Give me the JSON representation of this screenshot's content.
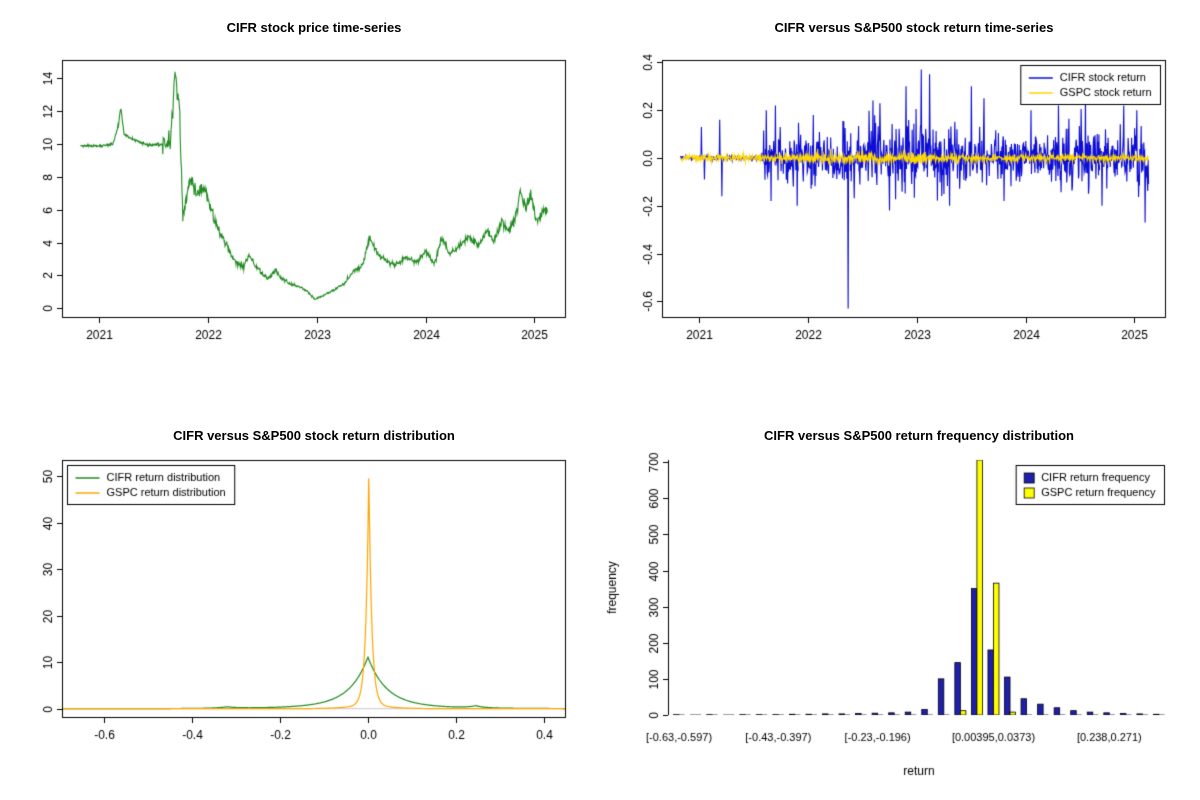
{
  "page": {
    "background": "#ffffff"
  },
  "chart_data": [
    {
      "id": "cifr-price-ts",
      "type": "line",
      "frame": "box",
      "title": "CIFR stock price time-series",
      "xlabel": "",
      "ylabel": "",
      "xlim": [
        2020.66,
        2025.29
      ],
      "ylim": [
        -0.58,
        15.08
      ],
      "xticks": [
        {
          "v": 2021,
          "label": "2021"
        },
        {
          "v": 2022,
          "label": "2022"
        },
        {
          "v": 2023,
          "label": "2023"
        },
        {
          "v": 2024,
          "label": "2024"
        },
        {
          "v": 2025,
          "label": "2025"
        }
      ],
      "yticks": [
        {
          "v": 0,
          "label": "0"
        },
        {
          "v": 2,
          "label": "2"
        },
        {
          "v": 4,
          "label": "4"
        },
        {
          "v": 6,
          "label": "6"
        },
        {
          "v": 8,
          "label": "8"
        },
        {
          "v": 10,
          "label": "10"
        },
        {
          "v": 12,
          "label": "12"
        },
        {
          "v": 14,
          "label": "14"
        }
      ],
      "series": [
        {
          "name": "CIFR price",
          "color": "#228b22",
          "seed": 11,
          "dt": 0.004,
          "trange": [
            2020.83,
            2025.12
          ],
          "noise_segments": [
            {
              "from": 2020.8,
              "to": 2021.58,
              "pct": 0.004
            },
            {
              "from": 2021.58,
              "to": 2025.2,
              "pct": 0.028
            }
          ],
          "keypoints": [
            [
              2020.83,
              9.9
            ],
            [
              2021.0,
              9.85
            ],
            [
              2021.13,
              10.0
            ],
            [
              2021.18,
              11.2
            ],
            [
              2021.2,
              12.2
            ],
            [
              2021.23,
              10.6
            ],
            [
              2021.3,
              10.3
            ],
            [
              2021.45,
              9.9
            ],
            [
              2021.55,
              9.95
            ],
            [
              2021.62,
              10.0
            ],
            [
              2021.66,
              10.6
            ],
            [
              2021.7,
              14.5
            ],
            [
              2021.72,
              13.0
            ],
            [
              2021.74,
              11.8
            ],
            [
              2021.77,
              5.6
            ],
            [
              2021.8,
              6.5
            ],
            [
              2021.83,
              7.9
            ],
            [
              2021.9,
              7.0
            ],
            [
              2021.97,
              7.3
            ],
            [
              2022.05,
              5.5
            ],
            [
              2022.15,
              4.1
            ],
            [
              2022.25,
              2.8
            ],
            [
              2022.33,
              2.5
            ],
            [
              2022.38,
              3.3
            ],
            [
              2022.43,
              2.7
            ],
            [
              2022.5,
              2.1
            ],
            [
              2022.55,
              1.8
            ],
            [
              2022.62,
              2.3
            ],
            [
              2022.68,
              1.8
            ],
            [
              2022.75,
              1.5
            ],
            [
              2022.85,
              1.3
            ],
            [
              2022.92,
              1.0
            ],
            [
              2022.98,
              0.55
            ],
            [
              2023.05,
              0.75
            ],
            [
              2023.15,
              1.1
            ],
            [
              2023.25,
              1.5
            ],
            [
              2023.33,
              2.2
            ],
            [
              2023.42,
              2.6
            ],
            [
              2023.49,
              4.4
            ],
            [
              2023.53,
              3.6
            ],
            [
              2023.58,
              3.2
            ],
            [
              2023.65,
              2.9
            ],
            [
              2023.72,
              2.6
            ],
            [
              2023.82,
              3.1
            ],
            [
              2023.92,
              2.8
            ],
            [
              2024.0,
              3.4
            ],
            [
              2024.08,
              2.7
            ],
            [
              2024.15,
              4.3
            ],
            [
              2024.22,
              3.3
            ],
            [
              2024.3,
              3.7
            ],
            [
              2024.4,
              4.4
            ],
            [
              2024.48,
              3.8
            ],
            [
              2024.56,
              4.7
            ],
            [
              2024.63,
              4.1
            ],
            [
              2024.7,
              5.3
            ],
            [
              2024.76,
              4.7
            ],
            [
              2024.82,
              5.5
            ],
            [
              2024.87,
              6.9
            ],
            [
              2024.92,
              6.2
            ],
            [
              2024.97,
              6.7
            ],
            [
              2025.02,
              5.3
            ],
            [
              2025.07,
              5.9
            ],
            [
              2025.12,
              6.1
            ]
          ]
        }
      ]
    },
    {
      "id": "cifr-gspc-return-ts",
      "type": "line",
      "frame": "box",
      "title": "CIFR versus S&P500 stock return time-series",
      "xlabel": "",
      "ylabel": "",
      "xlim": [
        2020.66,
        2025.29
      ],
      "ylim": [
        -0.67,
        0.41
      ],
      "xticks": [
        {
          "v": 2021,
          "label": "2021"
        },
        {
          "v": 2022,
          "label": "2022"
        },
        {
          "v": 2023,
          "label": "2023"
        },
        {
          "v": 2024,
          "label": "2024"
        },
        {
          "v": 2025,
          "label": "2025"
        }
      ],
      "yticks": [
        {
          "v": -0.6,
          "label": "-0.6"
        },
        {
          "v": -0.4,
          "label": "-0.4"
        },
        {
          "v": -0.2,
          "label": "-0.2"
        },
        {
          "v": 0.0,
          "label": "0.0"
        },
        {
          "v": 0.2,
          "label": "0.2"
        },
        {
          "v": 0.4,
          "label": "0.4"
        }
      ],
      "legend": {
        "pos": "tr",
        "style": "line",
        "items": [
          {
            "label": "CIFR stock return",
            "color": "#0d0dd6"
          },
          {
            "label": "GSPC stock return",
            "color": "#ffd700"
          }
        ]
      },
      "series": [
        {
          "name": "CIFR stock return",
          "color": "#0d0dd6",
          "seed": 23,
          "dt": 0.004,
          "trange": [
            2020.83,
            2025.13
          ],
          "vol_segments": [
            {
              "from": 2020.83,
              "to": 2021.57,
              "vol": 0.004
            },
            {
              "from": 2021.57,
              "to": 2022.3,
              "vol": 0.05
            },
            {
              "from": 2022.3,
              "to": 2023.35,
              "vol": 0.07
            },
            {
              "from": 2023.35,
              "to": 2024.25,
              "vol": 0.05
            },
            {
              "from": 2024.25,
              "to": 2025.14,
              "vol": 0.06
            }
          ],
          "spikes": [
            [
              2021.02,
              0.13
            ],
            [
              2021.05,
              -0.09
            ],
            [
              2021.19,
              0.16
            ],
            [
              2021.21,
              -0.16
            ],
            [
              2021.62,
              0.2
            ],
            [
              2021.66,
              -0.18
            ],
            [
              2021.7,
              0.22
            ],
            [
              2021.9,
              -0.2
            ],
            [
              2022.05,
              0.18
            ],
            [
              2022.37,
              -0.63
            ],
            [
              2022.6,
              0.24
            ],
            [
              2022.75,
              -0.22
            ],
            [
              2022.9,
              0.3
            ],
            [
              2023.04,
              0.37
            ],
            [
              2023.12,
              0.35
            ],
            [
              2023.3,
              -0.2
            ],
            [
              2023.5,
              0.3
            ],
            [
              2023.62,
              0.25
            ],
            [
              2023.8,
              -0.18
            ],
            [
              2024.05,
              0.2
            ],
            [
              2024.3,
              0.22
            ],
            [
              2024.55,
              0.26
            ],
            [
              2024.7,
              -0.2
            ],
            [
              2024.9,
              0.22
            ],
            [
              2025.02,
              0.2
            ],
            [
              2025.1,
              -0.27
            ]
          ]
        },
        {
          "name": "GSPC stock return",
          "color": "#ffd700",
          "seed": 5,
          "dt": 0.004,
          "trange": [
            2020.83,
            2025.13
          ],
          "vol_segments": [
            {
              "from": 2020.83,
              "to": 2021.9,
              "vol": 0.007
            },
            {
              "from": 2021.9,
              "to": 2023.1,
              "vol": 0.012
            },
            {
              "from": 2023.1,
              "to": 2025.14,
              "vol": 0.007
            }
          ],
          "spikes": []
        }
      ]
    },
    {
      "id": "cifr-gspc-return-density",
      "type": "density",
      "frame": "box",
      "title": "CIFR versus S&P500 stock return distribution",
      "xlabel": "",
      "ylabel": "",
      "xlim": [
        -0.695,
        0.45
      ],
      "ylim": [
        -2.0,
        53.5
      ],
      "xticks": [
        {
          "v": -0.6,
          "label": "-0.6"
        },
        {
          "v": -0.4,
          "label": "-0.4"
        },
        {
          "v": -0.2,
          "label": "-0.2"
        },
        {
          "v": 0.0,
          "label": "0.0"
        },
        {
          "v": 0.2,
          "label": "0.2"
        },
        {
          "v": 0.4,
          "label": "0.4"
        }
      ],
      "yticks": [
        {
          "v": 0,
          "label": "0"
        },
        {
          "v": 10,
          "label": "10"
        },
        {
          "v": 20,
          "label": "20"
        },
        {
          "v": 30,
          "label": "30"
        },
        {
          "v": 40,
          "label": "40"
        },
        {
          "v": 50,
          "label": "50"
        }
      ],
      "legend": {
        "pos": "tl",
        "style": "line",
        "items": [
          {
            "label": "CIFR return distribution",
            "color": "#228b22"
          },
          {
            "label": "GSPC return distribution",
            "color": "#ffa500"
          }
        ]
      },
      "series": [
        {
          "name": "CIFR return distribution",
          "color": "#228b22",
          "peak": 11,
          "components": [
            {
              "h": 9.6,
              "c": 0.0,
              "s": 0.04
            },
            {
              "h": 1.5,
              "c": 0.0,
              "s": 0.12
            },
            {
              "h": 0.45,
              "c": 0.245,
              "s": 0.018
            },
            {
              "h": 0.3,
              "c": -0.32,
              "s": 0.025
            }
          ]
        },
        {
          "name": "GSPC return distribution",
          "color": "#ffa500",
          "peak": 51,
          "components": [
            {
              "h": 49.5,
              "c": 0.002,
              "s": 0.0065
            },
            {
              "h": 1.5,
              "c": 0.002,
              "s": 0.035
            }
          ]
        }
      ]
    },
    {
      "id": "cifr-gspc-return-frequency",
      "type": "grouped-bar",
      "frame": "yaxis",
      "title": "CIFR versus S&P500 return frequency distribution",
      "xlabel": "return",
      "ylabel": "frequency",
      "ylim": [
        0,
        706
      ],
      "yticks": [
        {
          "v": 0,
          "label": "0"
        },
        {
          "v": 100,
          "label": "100"
        },
        {
          "v": 200,
          "label": "200"
        },
        {
          "v": 300,
          "label": "300"
        },
        {
          "v": 400,
          "label": "400"
        },
        {
          "v": 500,
          "label": "500"
        },
        {
          "v": 600,
          "label": "600"
        },
        {
          "v": 700,
          "label": "700"
        }
      ],
      "bin_ticks": [
        {
          "group": 0,
          "label": "[-0.63,-0.597)"
        },
        {
          "group": 6,
          "label": "[-0.43,-0.397)"
        },
        {
          "group": 12,
          "label": "[-0.23,-0.196)"
        },
        {
          "group": 19,
          "label": "[0.00395,0.0373)"
        },
        {
          "group": 26,
          "label": "[0.238,0.271)"
        }
      ],
      "legend": {
        "pos": "tr",
        "style": "box",
        "items": [
          {
            "label": "CIFR return frequency",
            "color": "#1f1fae"
          },
          {
            "label": "GSPC return frequency",
            "color": "#ffff00"
          }
        ]
      },
      "series": [
        {
          "name": "CIFR return frequency",
          "color": "#1f1fae",
          "values": [
            1,
            0,
            1,
            0,
            1,
            1,
            1,
            2,
            2,
            3,
            3,
            4,
            5,
            6,
            8,
            15,
            100,
            145,
            350,
            180,
            105,
            45,
            30,
            20,
            12,
            8,
            6,
            4,
            3,
            2
          ]
        },
        {
          "name": "GSPC return frequency",
          "color": "#ffff00",
          "values": [
            0,
            0,
            0,
            0,
            0,
            0,
            0,
            0,
            0,
            0,
            0,
            0,
            0,
            0,
            0,
            0,
            0,
            12,
            706,
            365,
            8,
            0,
            0,
            0,
            0,
            0,
            0,
            0,
            0,
            0
          ]
        }
      ]
    }
  ]
}
